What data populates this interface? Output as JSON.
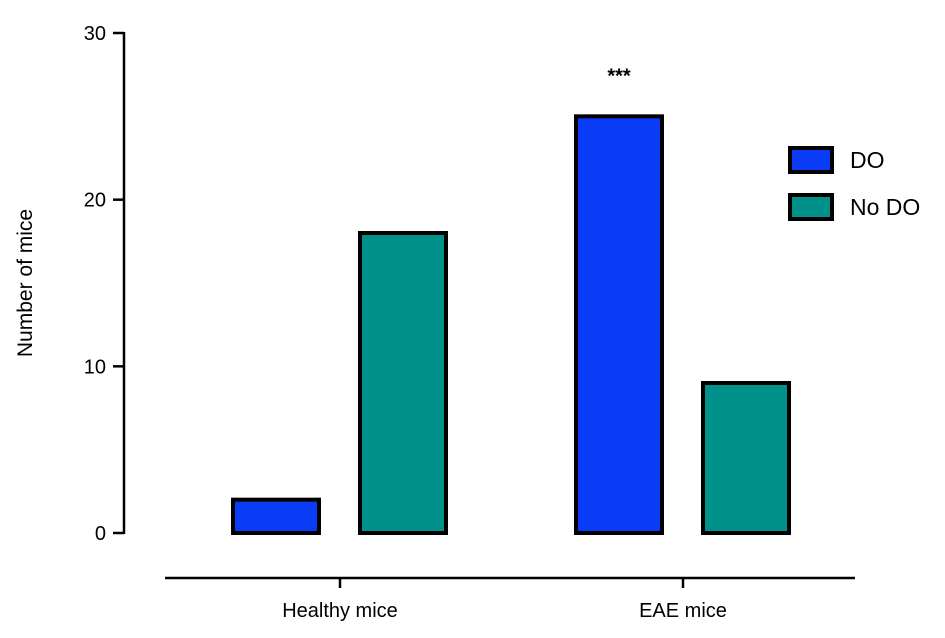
{
  "chart_data": {
    "type": "bar",
    "title": "",
    "xlabel": "",
    "ylabel": "Number of mice",
    "ylim": [
      0,
      30
    ],
    "yticks": [
      0,
      10,
      20,
      30
    ],
    "categories": [
      "Healthy mice",
      "EAE mice"
    ],
    "series": [
      {
        "name": "DO",
        "values": [
          2,
          25
        ],
        "color": "#0a3cf5"
      },
      {
        "name": "No DO",
        "values": [
          18,
          9
        ],
        "color": "#00918a"
      }
    ],
    "annotations": [
      {
        "category": "EAE mice",
        "series": "DO",
        "text": "***"
      }
    ],
    "legend": "right",
    "grid": false
  }
}
